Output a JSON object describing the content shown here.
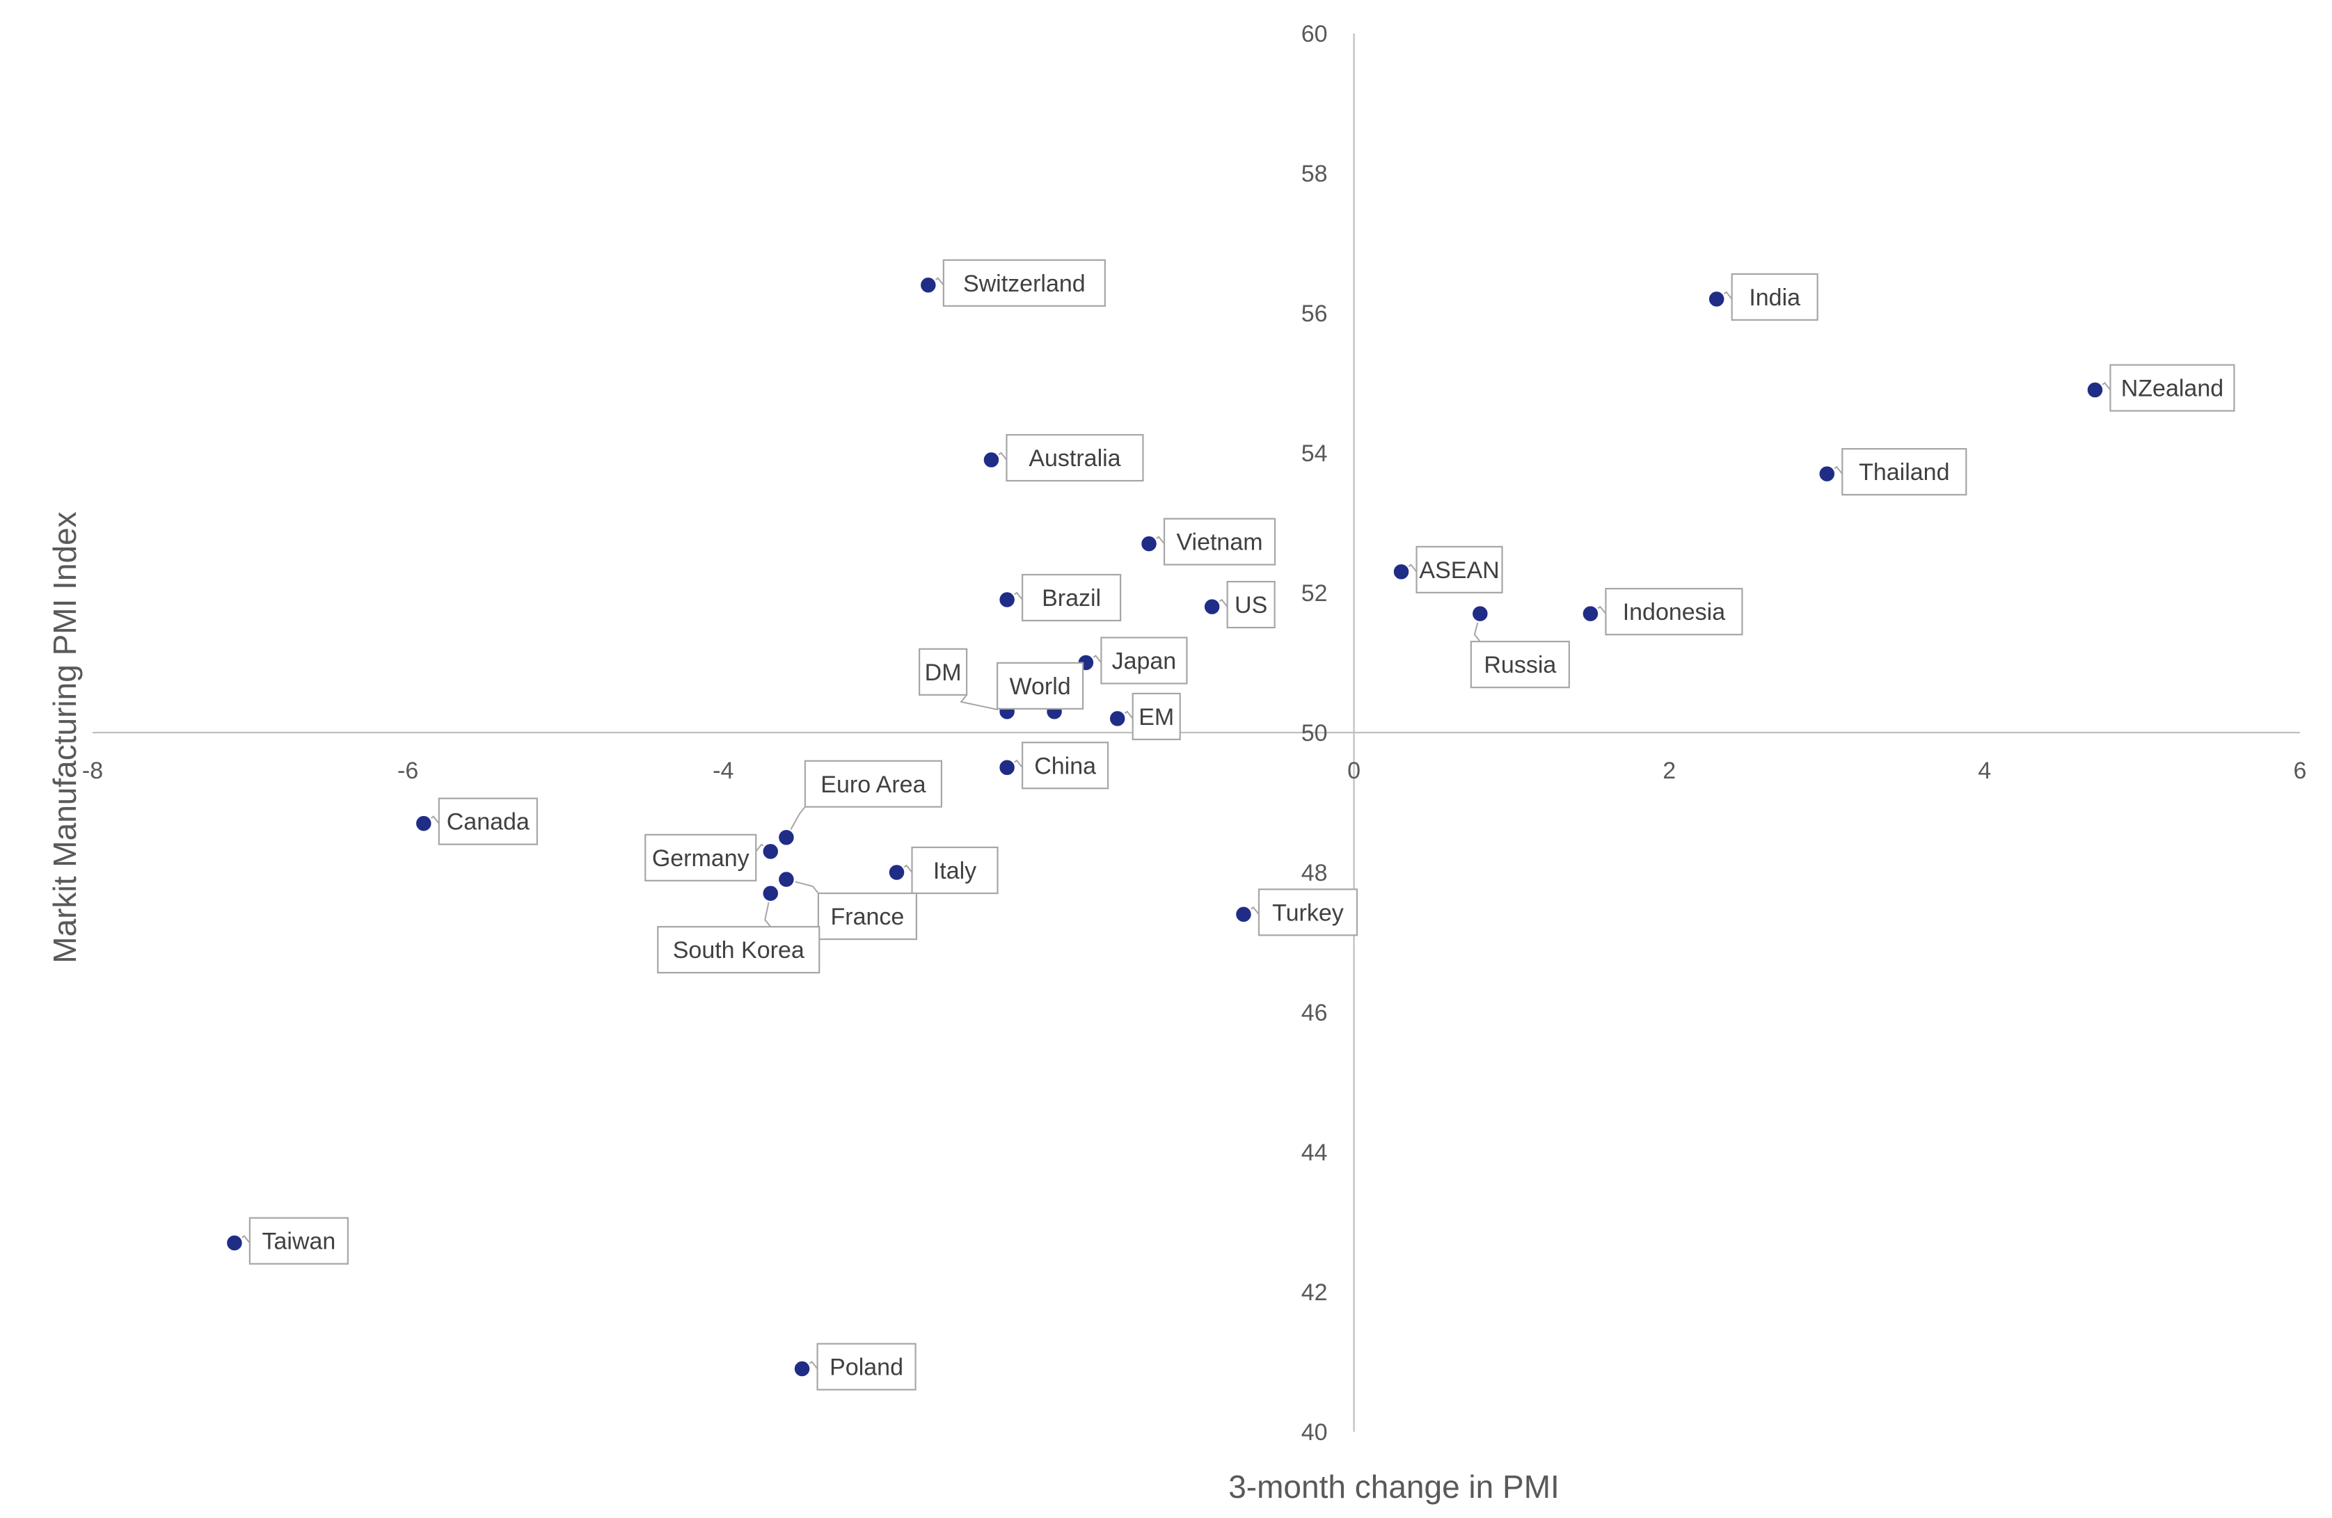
{
  "chart_data": {
    "type": "scatter",
    "title": "",
    "xlabel": "3-month change in PMI",
    "ylabel": "Markit Manufacturing PMI Index",
    "xlim": [
      -8,
      6
    ],
    "ylim": [
      40,
      60
    ],
    "x_ticks": [
      -8,
      -6,
      -4,
      -2,
      0,
      2,
      4,
      6
    ],
    "y_ticks": [
      40,
      42,
      44,
      46,
      48,
      50,
      52,
      54,
      56,
      58,
      60
    ],
    "axes_cross": {
      "x": 0,
      "y": 50
    },
    "grid": false,
    "legend": "none",
    "marker_color": "#1f2d86",
    "points": [
      {
        "label": "Switzerland",
        "x": -2.7,
        "y": 56.4
      },
      {
        "label": "India",
        "x": 2.3,
        "y": 56.2
      },
      {
        "label": "NZealand",
        "x": 4.7,
        "y": 54.9
      },
      {
        "label": "Australia",
        "x": -2.3,
        "y": 53.9
      },
      {
        "label": "Thailand",
        "x": 3.0,
        "y": 53.7
      },
      {
        "label": "Vietnam",
        "x": -1.3,
        "y": 52.7
      },
      {
        "label": "ASEAN",
        "x": 0.3,
        "y": 52.3
      },
      {
        "label": "Brazil",
        "x": -2.2,
        "y": 51.9
      },
      {
        "label": "US",
        "x": -0.9,
        "y": 51.8
      },
      {
        "label": "Russia",
        "x": 0.8,
        "y": 51.7
      },
      {
        "label": "Indonesia",
        "x": 1.5,
        "y": 51.7
      },
      {
        "label": "Japan",
        "x": -1.7,
        "y": 51.0
      },
      {
        "label": "DM",
        "x": -2.2,
        "y": 50.3
      },
      {
        "label": "World",
        "x": -1.9,
        "y": 50.3
      },
      {
        "label": "EM",
        "x": -1.5,
        "y": 50.2
      },
      {
        "label": "China",
        "x": -2.2,
        "y": 49.5
      },
      {
        "label": "Canada",
        "x": -5.9,
        "y": 48.7
      },
      {
        "label": "Euro Area",
        "x": -3.6,
        "y": 48.5
      },
      {
        "label": "Germany",
        "x": -3.7,
        "y": 48.3
      },
      {
        "label": "Italy",
        "x": -2.9,
        "y": 48.0
      },
      {
        "label": "France",
        "x": -3.6,
        "y": 47.9
      },
      {
        "label": "South Korea",
        "x": -3.7,
        "y": 47.7
      },
      {
        "label": "Turkey",
        "x": -0.7,
        "y": 47.4
      },
      {
        "label": "Taiwan",
        "x": -7.1,
        "y": 42.7
      },
      {
        "label": "Poland",
        "x": -3.5,
        "y": 40.9
      }
    ]
  }
}
